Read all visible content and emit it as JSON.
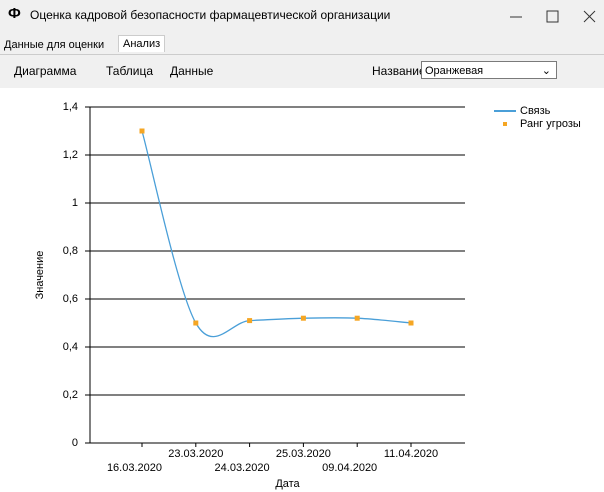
{
  "window": {
    "icon": "Ф",
    "title": "Оценка кадровой безопасности фармацевтической организации"
  },
  "tabs": [
    "Данные для оценки",
    "Анализ"
  ],
  "menu": [
    "Диаграмма",
    "Таблица",
    "Данные"
  ],
  "selector": {
    "label": "Название:",
    "value": "Оранжевая"
  },
  "chart_data": {
    "type": "line",
    "x_label": "Дата",
    "y_label": "Значение",
    "categories": [
      "16.03.2020",
      "23.03.2020",
      "24.03.2020",
      "25.03.2020",
      "09.04.2020",
      "11.04.2020"
    ],
    "series": [
      {
        "name": "Связь",
        "color": "#4a9fd8",
        "style": "spline",
        "values": [
          1.3,
          0.5,
          0.51,
          0.52,
          0.52,
          0.5
        ]
      },
      {
        "name": "Ранг угрозы",
        "color": "#f5a623",
        "style": "markers",
        "values": [
          1.3,
          0.5,
          0.51,
          0.52,
          0.52,
          0.5
        ]
      }
    ],
    "ylim": [
      0,
      1.4
    ],
    "yticks": [
      0,
      {
        "value": 0.2,
        "label": "0,2"
      },
      {
        "value": 0.4,
        "label": "0,4"
      },
      {
        "value": 0.6,
        "label": "0,6"
      },
      {
        "value": 0.8,
        "label": "0,8"
      },
      1,
      {
        "value": 1.2,
        "label": "1,2"
      },
      {
        "value": 1.4,
        "label": "1,4"
      }
    ],
    "grid": true,
    "legend": "top-right"
  }
}
